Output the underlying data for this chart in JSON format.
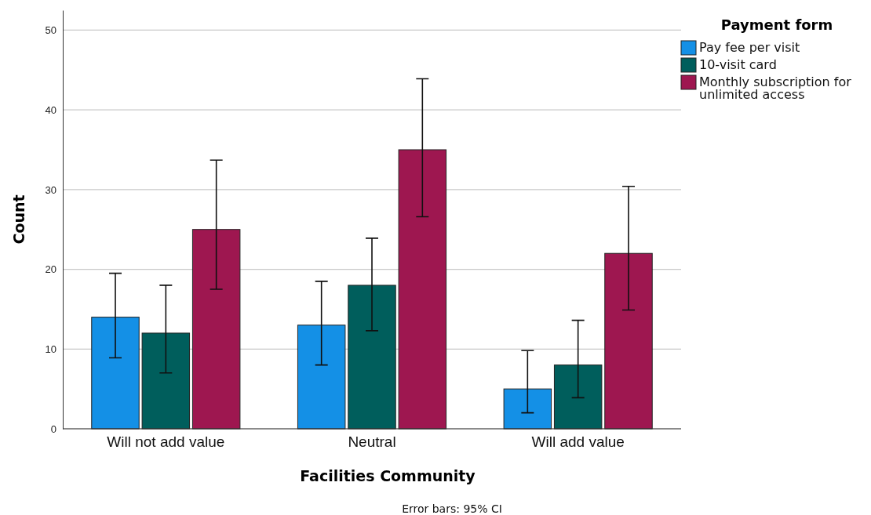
{
  "chart_data": {
    "type": "bar",
    "categories": [
      "Will not add value",
      "Neutral",
      "Will add value"
    ],
    "xlabel": "Facilities Community",
    "ylabel": "Count",
    "legend_title": "Payment form",
    "legend": "top right",
    "grid": "y",
    "ylim": [
      0,
      52.5
    ],
    "yticks": [
      0,
      10,
      20,
      30,
      40,
      50
    ],
    "annotations": [
      "Error bars: 95% CI"
    ],
    "series": [
      {
        "name": "Pay fee per visit",
        "color": "#1490e6",
        "values": [
          14,
          13,
          5
        ],
        "errors": [
          [
            8.9,
            19.5
          ],
          [
            8.0,
            18.5
          ],
          [
            2.0,
            9.8
          ]
        ]
      },
      {
        "name": "10-visit card",
        "color": "#005e5c",
        "values": [
          12,
          18,
          8
        ],
        "errors": [
          [
            7.0,
            18.0
          ],
          [
            12.3,
            23.9
          ],
          [
            3.9,
            13.6
          ]
        ]
      },
      {
        "name": "Monthly subscription for unlimited access",
        "color": "#9e1750",
        "values": [
          25,
          35,
          22
        ],
        "errors": [
          [
            17.5,
            33.7
          ],
          [
            26.6,
            43.9
          ],
          [
            14.9,
            30.4
          ]
        ]
      }
    ]
  }
}
